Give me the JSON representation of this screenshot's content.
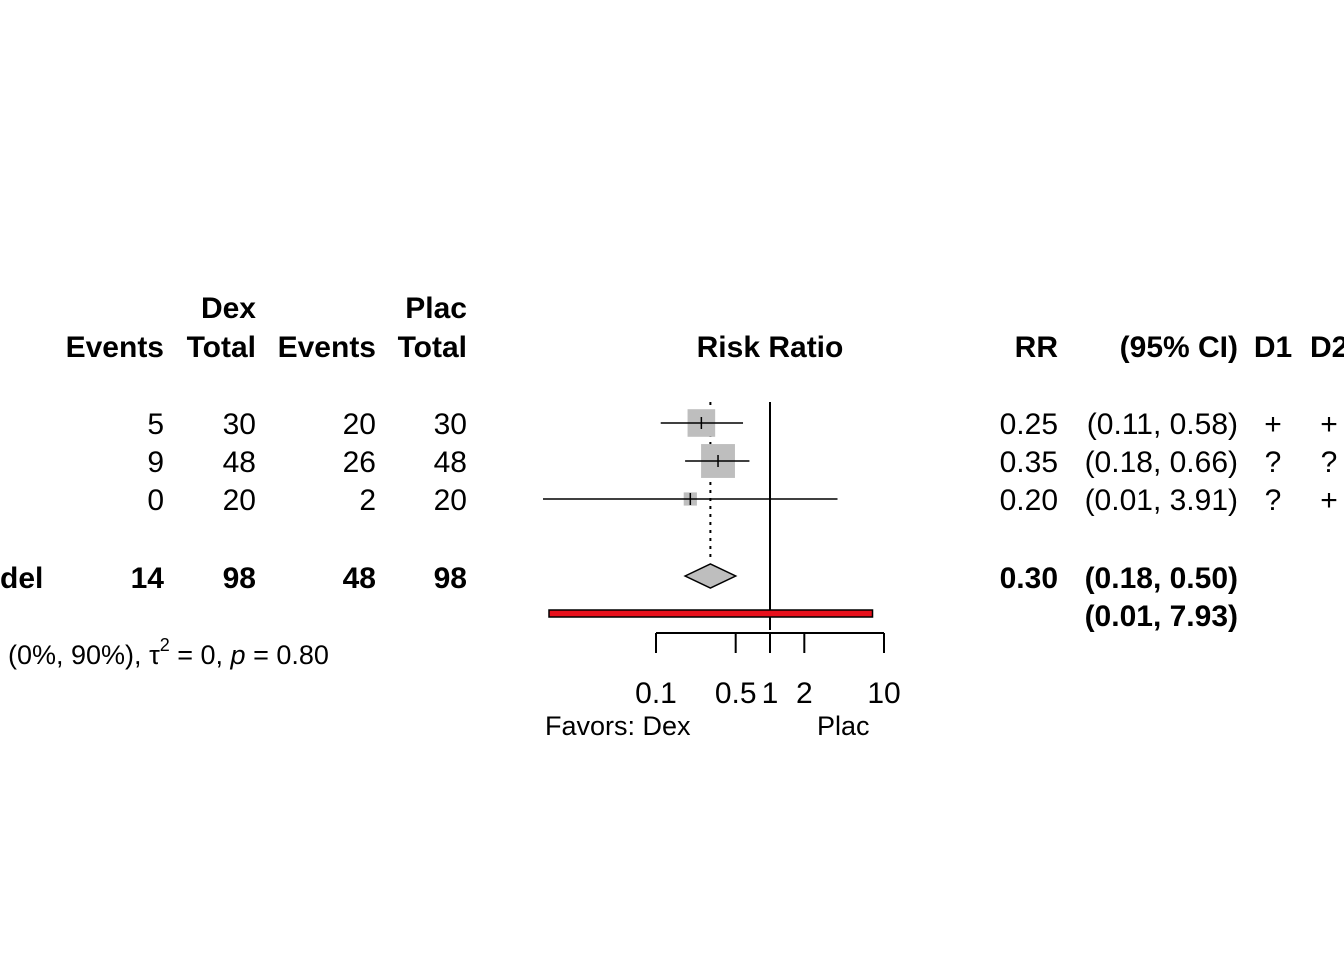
{
  "headers": {
    "group1": "Dex",
    "group2": "Plac",
    "events1": "Events",
    "total1": "Total",
    "events2": "Events",
    "total2": "Total",
    "plot": "Risk Ratio",
    "rr": "RR",
    "ci": "(95% CI)",
    "d1": "D1",
    "d2": "D2"
  },
  "chart_data": {
    "type": "forest",
    "title": "Risk Ratio",
    "scale": "log",
    "xlim": [
      0.02,
      20
    ],
    "axis_ticks": [
      0.1,
      0.5,
      1,
      2,
      10
    ],
    "axis_tick_labels": [
      "0.1",
      "0.5",
      "1",
      "2",
      "10"
    ],
    "favors_left": "Favors: Dex",
    "favors_right": "Plac",
    "studies": [
      {
        "events1": "5",
        "total1": "30",
        "events2": "20",
        "total2": "30",
        "rr": 0.25,
        "ci_low": 0.11,
        "ci_high": 0.58,
        "rr_text": "0.25",
        "ci_text": "(0.11, 0.58)",
        "d1": "+",
        "d2": "+",
        "weight": 0.36
      },
      {
        "events1": "9",
        "total1": "48",
        "events2": "26",
        "total2": "48",
        "rr": 0.35,
        "ci_low": 0.18,
        "ci_high": 0.66,
        "rr_text": "0.35",
        "ci_text": "(0.18, 0.66)",
        "d1": "?",
        "d2": "?",
        "weight": 0.6
      },
      {
        "events1": "0",
        "total1": "20",
        "events2": "2",
        "total2": "20",
        "rr": 0.2,
        "ci_low": 0.01,
        "ci_high": 3.91,
        "rr_text": "0.20",
        "ci_text": "(0.01, 3.91)",
        "d1": "?",
        "d2": "+",
        "weight": 0.04
      }
    ],
    "pooled": {
      "label": "del",
      "events1": "14",
      "total1": "98",
      "events2": "48",
      "total2": "98",
      "rr": 0.3,
      "ci_low": 0.18,
      "ci_high": 0.5,
      "rr_text": "0.30",
      "ci_text": "(0.18, 0.50)"
    },
    "prediction_interval": {
      "low": 0.01,
      "high": 7.93,
      "ci_text": "(0.01, 7.93)"
    },
    "heterogeneity": {
      "prefix": "(0%, 90%), ",
      "tau_symbol": "τ",
      "tau_exp": "2",
      "tau_value": " = 0, ",
      "p_symbol": "p",
      "p_value": " = 0.80"
    },
    "colors": {
      "box": "#bebebe",
      "diamond": "#bebebe",
      "prediction": "#e8101c",
      "line": "#000000"
    }
  }
}
